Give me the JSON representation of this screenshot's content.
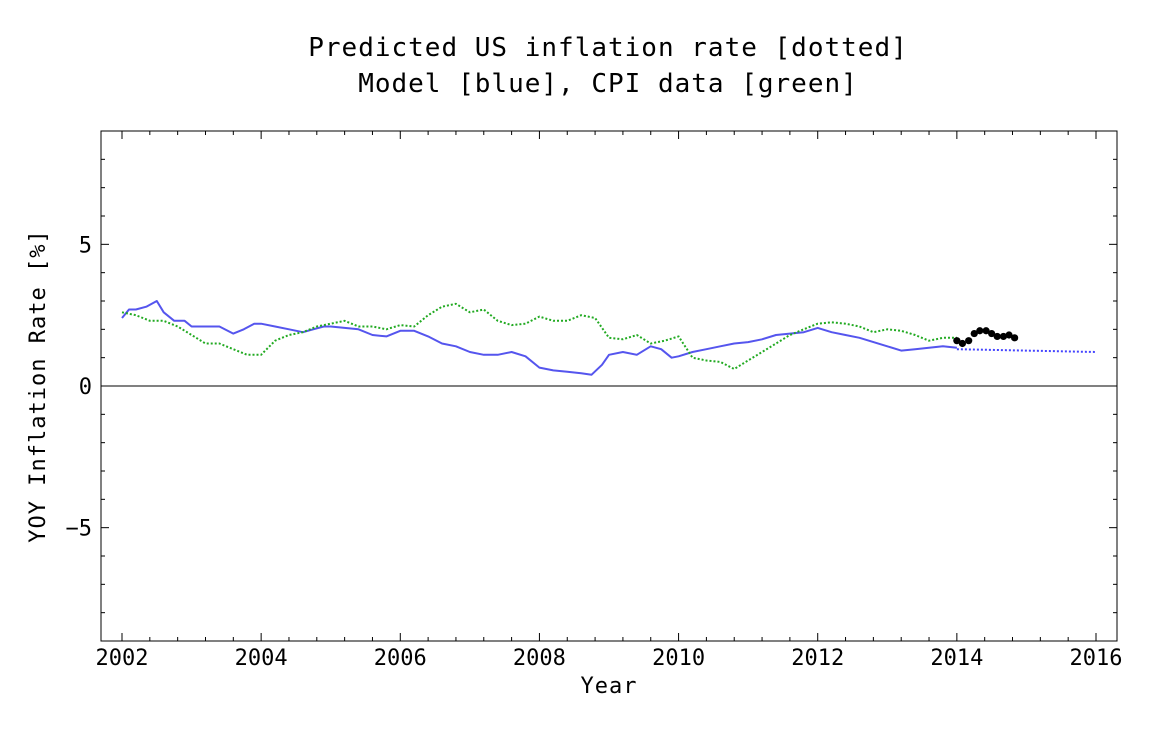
{
  "chart_data": {
    "type": "line",
    "title": "Predicted US inflation rate [dotted]",
    "subtitle": "Model [blue], CPI data [green]",
    "xlabel": "Year",
    "ylabel": "YOY Inflation Rate [%]",
    "xlim": [
      2002,
      2016
    ],
    "ylim": [
      -9,
      9
    ],
    "xticks": [
      2002,
      2004,
      2006,
      2008,
      2010,
      2012,
      2014,
      2016
    ],
    "yticks": [
      -5,
      0,
      5
    ],
    "ytick_labels": [
      "−5",
      "0",
      "5"
    ],
    "grid": false,
    "colors": {
      "model": "#5555ee",
      "cpi": "#22aa22",
      "new_data": "#000000",
      "prediction": "#4444ff",
      "zero_line": "#000000"
    },
    "series": [
      {
        "key": "model",
        "style": "solid",
        "x": [
          2002.0,
          2002.1,
          2002.2,
          2002.35,
          2002.5,
          2002.6,
          2002.75,
          2002.9,
          2003.0,
          2003.2,
          2003.4,
          2003.6,
          2003.75,
          2003.9,
          2004.0,
          2004.2,
          2004.4,
          2004.6,
          2004.75,
          2004.9,
          2005.0,
          2005.2,
          2005.4,
          2005.6,
          2005.8,
          2006.0,
          2006.2,
          2006.4,
          2006.6,
          2006.8,
          2007.0,
          2007.2,
          2007.4,
          2007.6,
          2007.8,
          2008.0,
          2008.2,
          2008.4,
          2008.6,
          2008.75,
          2008.9,
          2009.0,
          2009.2,
          2009.4,
          2009.6,
          2009.75,
          2009.9,
          2010.0,
          2010.2,
          2010.4,
          2010.6,
          2010.8,
          2011.0,
          2011.2,
          2011.4,
          2011.6,
          2011.8,
          2012.0,
          2012.2,
          2012.4,
          2012.6,
          2012.8,
          2013.0,
          2013.2,
          2013.4,
          2013.6,
          2013.8,
          2014.0
        ],
        "y": [
          2.4,
          2.7,
          2.7,
          2.8,
          3.0,
          2.6,
          2.3,
          2.3,
          2.1,
          2.1,
          2.1,
          1.85,
          2.0,
          2.2,
          2.2,
          2.1,
          2.0,
          1.9,
          2.0,
          2.1,
          2.1,
          2.05,
          2.0,
          1.8,
          1.75,
          1.95,
          1.95,
          1.75,
          1.5,
          1.4,
          1.2,
          1.1,
          1.1,
          1.2,
          1.05,
          0.65,
          0.55,
          0.5,
          0.45,
          0.4,
          0.75,
          1.1,
          1.2,
          1.1,
          1.4,
          1.3,
          1.0,
          1.05,
          1.2,
          1.3,
          1.4,
          1.5,
          1.55,
          1.65,
          1.8,
          1.85,
          1.9,
          2.05,
          1.9,
          1.8,
          1.7,
          1.55,
          1.4,
          1.25,
          1.3,
          1.35,
          1.4,
          1.35
        ]
      },
      {
        "key": "cpi",
        "style": "dotted",
        "x": [
          2002.0,
          2002.2,
          2002.4,
          2002.6,
          2002.8,
          2003.0,
          2003.2,
          2003.4,
          2003.6,
          2003.8,
          2004.0,
          2004.2,
          2004.4,
          2004.6,
          2004.8,
          2005.0,
          2005.2,
          2005.4,
          2005.6,
          2005.8,
          2006.0,
          2006.2,
          2006.4,
          2006.6,
          2006.8,
          2007.0,
          2007.2,
          2007.4,
          2007.6,
          2007.8,
          2008.0,
          2008.2,
          2008.4,
          2008.6,
          2008.8,
          2009.0,
          2009.2,
          2009.4,
          2009.6,
          2009.8,
          2010.0,
          2010.2,
          2010.4,
          2010.6,
          2010.8,
          2011.0,
          2011.2,
          2011.4,
          2011.6,
          2011.8,
          2012.0,
          2012.2,
          2012.4,
          2012.6,
          2012.8,
          2013.0,
          2013.2,
          2013.4,
          2013.6,
          2013.8,
          2014.0
        ],
        "y": [
          2.6,
          2.5,
          2.3,
          2.3,
          2.1,
          1.8,
          1.5,
          1.5,
          1.3,
          1.1,
          1.1,
          1.6,
          1.8,
          1.9,
          2.1,
          2.2,
          2.3,
          2.1,
          2.1,
          2.0,
          2.15,
          2.1,
          2.5,
          2.8,
          2.9,
          2.6,
          2.7,
          2.3,
          2.15,
          2.2,
          2.45,
          2.3,
          2.3,
          2.5,
          2.4,
          1.7,
          1.65,
          1.8,
          1.5,
          1.6,
          1.75,
          1.0,
          0.9,
          0.85,
          0.6,
          0.9,
          1.2,
          1.5,
          1.8,
          2.0,
          2.2,
          2.25,
          2.2,
          2.1,
          1.9,
          2.0,
          1.95,
          1.8,
          1.6,
          1.7,
          1.7
        ]
      },
      {
        "key": "new_data",
        "style": "points",
        "x": [
          2014.0,
          2014.08,
          2014.17,
          2014.25,
          2014.33,
          2014.42,
          2014.5,
          2014.58,
          2014.67,
          2014.75,
          2014.83
        ],
        "y": [
          1.6,
          1.5,
          1.6,
          1.85,
          1.95,
          1.95,
          1.85,
          1.75,
          1.75,
          1.8,
          1.7
        ]
      },
      {
        "key": "prediction",
        "style": "dotted",
        "x": [
          2014.0,
          2015.0,
          2016.0
        ],
        "y": [
          1.3,
          1.25,
          1.2
        ]
      }
    ]
  }
}
